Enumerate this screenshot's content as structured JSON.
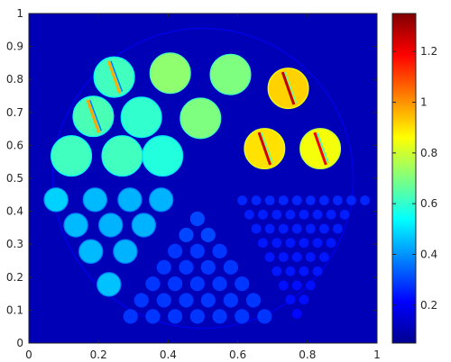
{
  "chart_data": {
    "type": "heatmap",
    "title": "",
    "xlabel": "",
    "ylabel": "",
    "xlim": [
      0,
      1
    ],
    "ylim": [
      0,
      1
    ],
    "x_ticks": [
      "0",
      "0.2",
      "0.4",
      "0.6",
      "0.8",
      "1"
    ],
    "y_ticks": [
      "0",
      "0.1",
      "0.2",
      "0.3",
      "0.4",
      "0.5",
      "0.6",
      "0.7",
      "0.8",
      "0.9",
      "1"
    ],
    "colormap": "jet",
    "color_range": [
      0.05,
      1.35
    ],
    "colorbar_ticks": [
      "0.2",
      "0.4",
      "0.6",
      "0.8",
      "1",
      "1.2"
    ],
    "colorbar_tick_values": [
      0.2,
      0.4,
      0.6,
      0.8,
      1.0,
      1.2
    ],
    "background_value": 0.12,
    "grid": false,
    "large_circles": [
      {
        "x": 0.245,
        "y": 0.807,
        "value": 0.62,
        "streak": true
      },
      {
        "x": 0.406,
        "y": 0.819,
        "value": 0.72
      },
      {
        "x": 0.579,
        "y": 0.815,
        "value": 0.7
      },
      {
        "x": 0.745,
        "y": 0.773,
        "value": 0.92,
        "streak": true
      },
      {
        "x": 0.185,
        "y": 0.688,
        "value": 0.63,
        "streak": true
      },
      {
        "x": 0.323,
        "y": 0.685,
        "value": 0.6
      },
      {
        "x": 0.493,
        "y": 0.682,
        "value": 0.7
      },
      {
        "x": 0.677,
        "y": 0.59,
        "value": 0.9,
        "streak": true
      },
      {
        "x": 0.837,
        "y": 0.59,
        "value": 0.85,
        "streak": true
      },
      {
        "x": 0.122,
        "y": 0.568,
        "value": 0.62
      },
      {
        "x": 0.268,
        "y": 0.568,
        "value": 0.62
      },
      {
        "x": 0.384,
        "y": 0.568,
        "value": 0.58
      }
    ],
    "medium_circles": [
      {
        "x": 0.078,
        "y": 0.435,
        "value": 0.48
      },
      {
        "x": 0.19,
        "y": 0.435,
        "value": 0.45
      },
      {
        "x": 0.29,
        "y": 0.435,
        "value": 0.44
      },
      {
        "x": 0.38,
        "y": 0.435,
        "value": 0.44
      },
      {
        "x": 0.135,
        "y": 0.358,
        "value": 0.45
      },
      {
        "x": 0.235,
        "y": 0.358,
        "value": 0.44
      },
      {
        "x": 0.33,
        "y": 0.358,
        "value": 0.44
      },
      {
        "x": 0.178,
        "y": 0.278,
        "value": 0.45
      },
      {
        "x": 0.277,
        "y": 0.278,
        "value": 0.44
      },
      {
        "x": 0.23,
        "y": 0.178,
        "value": 0.46
      }
    ],
    "small_circle_rows": [
      {
        "y": 0.377,
        "value": 0.3,
        "x": [
          0.484
        ]
      },
      {
        "y": 0.328,
        "value": 0.3,
        "x": [
          0.452,
          0.515
        ]
      },
      {
        "y": 0.279,
        "value": 0.28,
        "x": [
          0.42,
          0.484,
          0.548
        ]
      },
      {
        "y": 0.23,
        "value": 0.28,
        "x": [
          0.388,
          0.452,
          0.515,
          0.58
        ]
      },
      {
        "y": 0.18,
        "value": 0.28,
        "x": [
          0.356,
          0.42,
          0.484,
          0.548,
          0.612
        ]
      },
      {
        "y": 0.13,
        "value": 0.28,
        "x": [
          0.323,
          0.388,
          0.452,
          0.515,
          0.58,
          0.645
        ]
      },
      {
        "y": 0.081,
        "value": 0.28,
        "x": [
          0.292,
          0.356,
          0.42,
          0.484,
          0.548,
          0.612,
          0.677
        ]
      }
    ],
    "tiny_circle_rows": [
      {
        "y": 0.433,
        "value": 0.26,
        "x": [
          0.613,
          0.653,
          0.692,
          0.731,
          0.77,
          0.809,
          0.848,
          0.887,
          0.926,
          0.965
        ]
      },
      {
        "y": 0.39,
        "value": 0.25,
        "x": [
          0.633,
          0.672,
          0.712,
          0.751,
          0.79,
          0.829,
          0.868,
          0.907
        ]
      },
      {
        "y": 0.347,
        "value": 0.25,
        "x": [
          0.653,
          0.692,
          0.731,
          0.77,
          0.809,
          0.848,
          0.887
        ]
      },
      {
        "y": 0.304,
        "value": 0.24,
        "x": [
          0.672,
          0.712,
          0.751,
          0.79,
          0.829,
          0.868
        ]
      },
      {
        "y": 0.261,
        "value": 0.24,
        "x": [
          0.692,
          0.731,
          0.77,
          0.809,
          0.848
        ]
      },
      {
        "y": 0.218,
        "value": 0.24,
        "x": [
          0.712,
          0.751,
          0.79,
          0.829
        ]
      },
      {
        "y": 0.175,
        "value": 0.23,
        "x": [
          0.731,
          0.77,
          0.809
        ]
      },
      {
        "y": 0.132,
        "value": 0.23,
        "x": [
          0.751,
          0.79
        ]
      },
      {
        "y": 0.089,
        "value": 0.22,
        "x": [
          0.77
        ]
      }
    ]
  }
}
